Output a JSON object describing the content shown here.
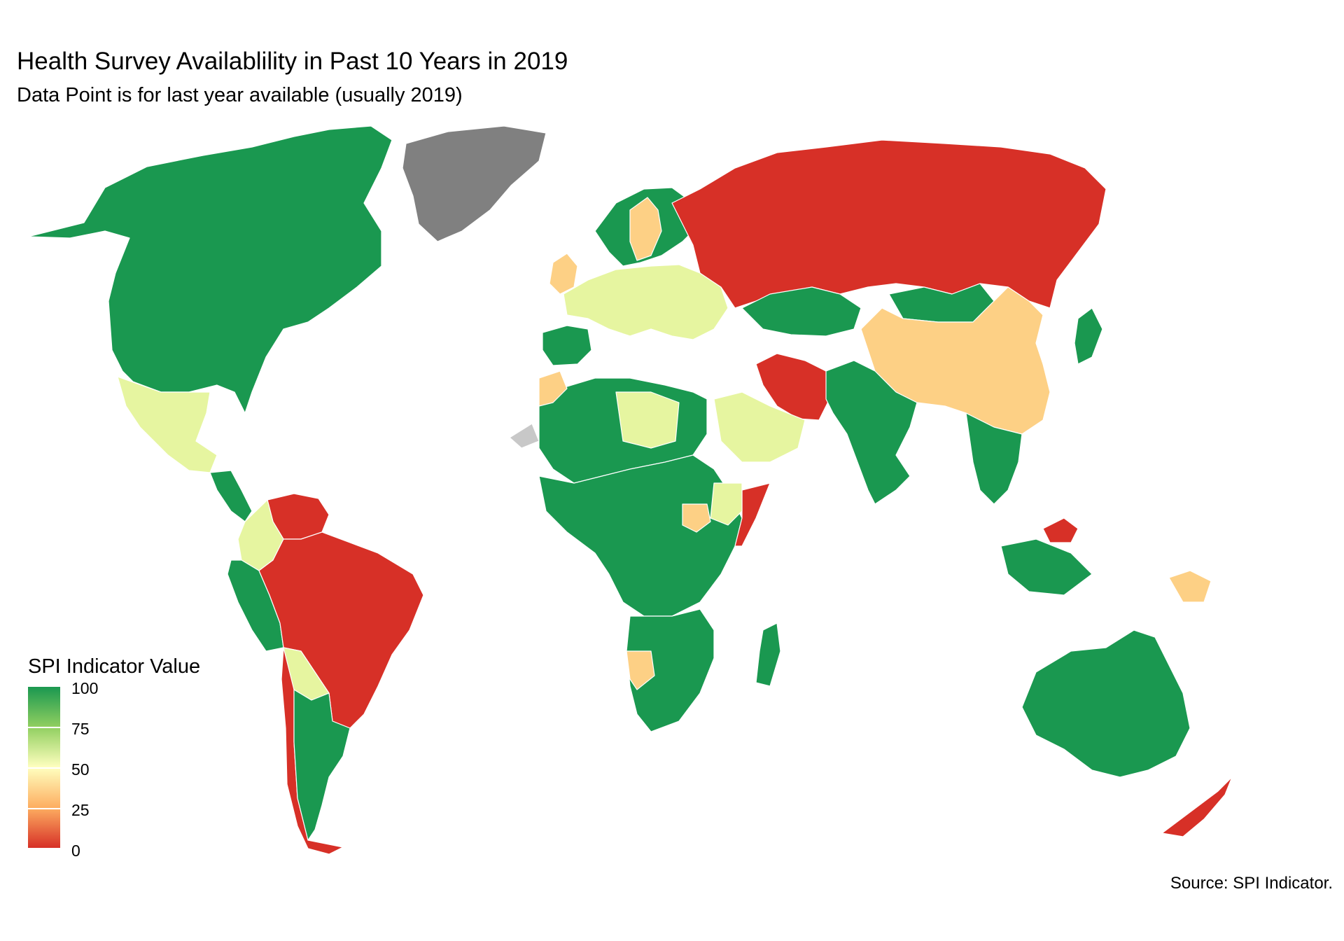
{
  "title": "Health Survey Availablility in Past 10 Years in 2019",
  "subtitle": "Data Point is for last year available (usually 2019)",
  "caption": "Source: SPI Indicator.",
  "legend": {
    "title": "SPI Indicator Value",
    "ticks": [
      "100",
      "75",
      "50",
      "25",
      "0"
    ],
    "colors": [
      "#1a9850",
      "#91cf60",
      "#ffffbf",
      "#fdae61",
      "#d73027"
    ]
  },
  "palette": {
    "green": "#1a9850",
    "lightgreen": "#e6f5a0",
    "orange": "#fdd085",
    "red": "#d73027",
    "missing": "#808080",
    "lightgrey": "#c8c8c8"
  },
  "regions": [
    {
      "name": "North America",
      "fill": "green"
    },
    {
      "name": "Greenland",
      "fill": "missing"
    },
    {
      "name": "Mexico",
      "fill": "lightgreen"
    },
    {
      "name": "Central America",
      "fill": "green"
    },
    {
      "name": "Venezuela",
      "fill": "red"
    },
    {
      "name": "Colombia",
      "fill": "lightgreen"
    },
    {
      "name": "Peru",
      "fill": "green"
    },
    {
      "name": "Brazil",
      "fill": "red"
    },
    {
      "name": "Bolivia",
      "fill": "lightgreen"
    },
    {
      "name": "Chile",
      "fill": "red"
    },
    {
      "name": "Argentina",
      "fill": "green"
    },
    {
      "name": "Scandinavia",
      "fill": "green"
    },
    {
      "name": "Sweden",
      "fill": "orange"
    },
    {
      "name": "United Kingdom",
      "fill": "orange"
    },
    {
      "name": "Europe",
      "fill": "lightgreen"
    },
    {
      "name": "Spain",
      "fill": "green"
    },
    {
      "name": "Russia",
      "fill": "red"
    },
    {
      "name": "Kazakhstan",
      "fill": "green"
    },
    {
      "name": "Mongolia",
      "fill": "green"
    },
    {
      "name": "China",
      "fill": "orange"
    },
    {
      "name": "Iran",
      "fill": "red"
    },
    {
      "name": "India",
      "fill": "green"
    },
    {
      "name": "Southeast Asia",
      "fill": "green"
    },
    {
      "name": "Indonesia",
      "fill": "green"
    },
    {
      "name": "Malaysia",
      "fill": "red"
    },
    {
      "name": "Papua New Guinea",
      "fill": "orange"
    },
    {
      "name": "Australia",
      "fill": "green"
    },
    {
      "name": "New Zealand",
      "fill": "red"
    },
    {
      "name": "North Africa",
      "fill": "green"
    },
    {
      "name": "Libya",
      "fill": "lightgreen"
    },
    {
      "name": "Saudi Arabia",
      "fill": "lightgreen"
    },
    {
      "name": "Central Africa",
      "fill": "green"
    },
    {
      "name": "Somalia",
      "fill": "red"
    },
    {
      "name": "Ethiopia",
      "fill": "lightgreen"
    },
    {
      "name": "South Sudan",
      "fill": "orange"
    },
    {
      "name": "Southern Africa",
      "fill": "green"
    },
    {
      "name": "Namibia",
      "fill": "orange"
    },
    {
      "name": "Madagascar",
      "fill": "green"
    },
    {
      "name": "Western Sahara",
      "fill": "lightgrey"
    },
    {
      "name": "Japan",
      "fill": "green"
    },
    {
      "name": "Morocco",
      "fill": "orange"
    }
  ]
}
